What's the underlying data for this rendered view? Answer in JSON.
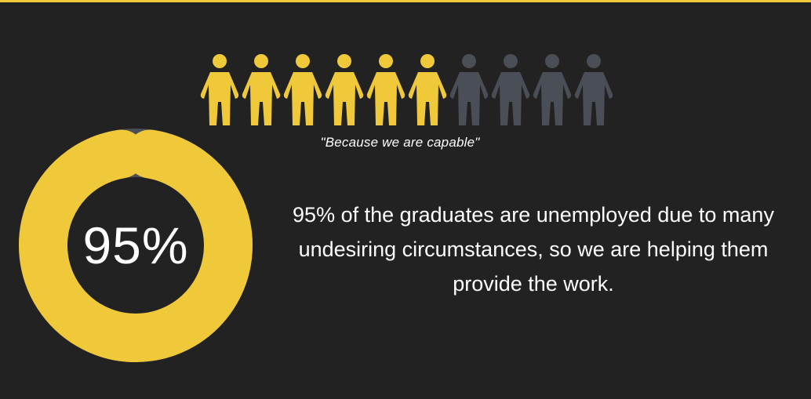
{
  "header": {
    "accent_color": "#f0c93a"
  },
  "chart_data": [
    {
      "type": "pictograph",
      "icon": "person-icon",
      "total": 10,
      "filled": 6,
      "filled_color": "#f0c93a",
      "empty_color": "#4a4f57"
    },
    {
      "type": "donut",
      "value": 95,
      "max": 100,
      "label": "95%",
      "filled_color": "#f0c93a",
      "track_color": "#4a4f57"
    }
  ],
  "quote": "\"Because we are capable\"",
  "description": "95% of the graduates are unemployed due to many undesiring circumstances, so we are helping them provide the work."
}
